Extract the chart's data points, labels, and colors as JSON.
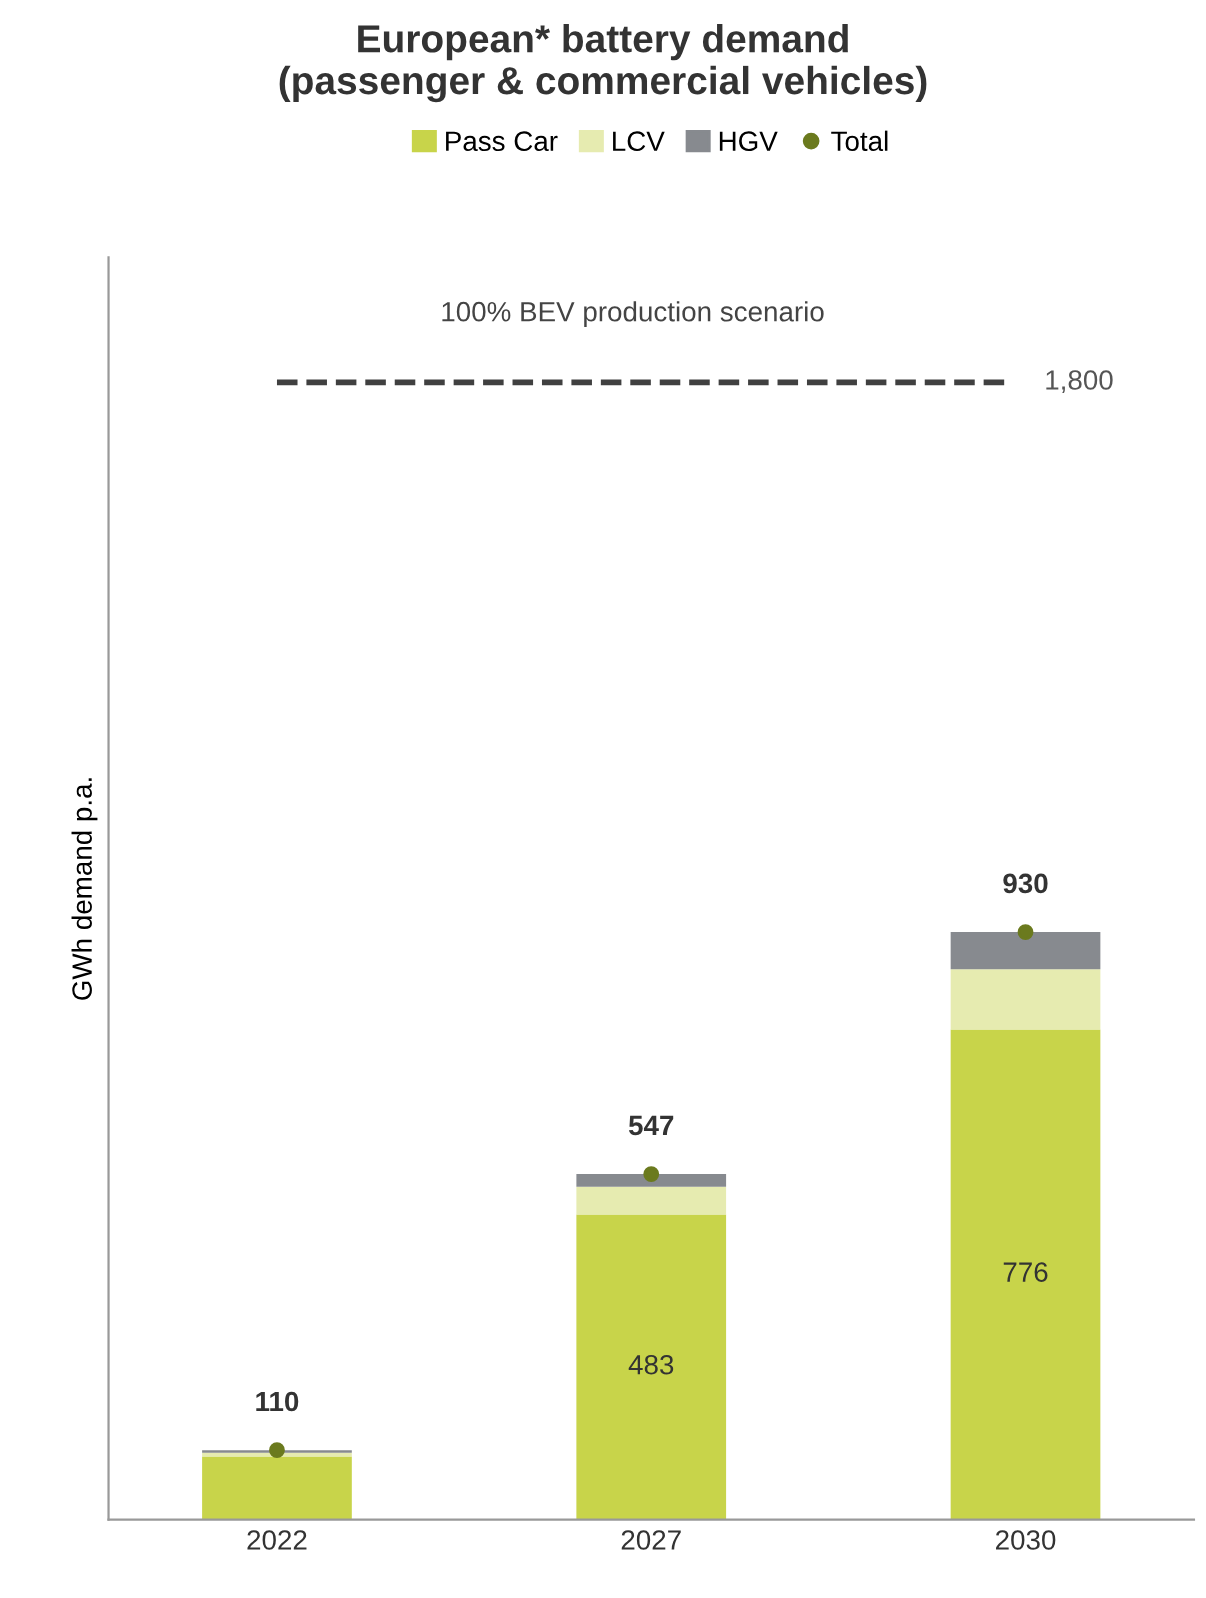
{
  "chart_data": {
    "type": "bar",
    "title": "European* battery demand\n(passenger & commercial vehicles)",
    "ylabel": "GWh demand p.a.",
    "categories": [
      "2022",
      "2027",
      "2030"
    ],
    "stacked": true,
    "tick_labels": "x",
    "legend": "top",
    "grid": false,
    "series": [
      {
        "name": "Pass Car",
        "color": "#c8d44a",
        "values": [
          100,
          483,
          776
        ],
        "value_labels": [
          null,
          "483",
          "776"
        ]
      },
      {
        "name": "LCV",
        "color": "#e6ebb0",
        "values": [
          6,
          44,
          95
        ]
      },
      {
        "name": "HGV",
        "color": "#878a8f",
        "values": [
          4,
          20,
          59
        ]
      },
      {
        "name": "Total",
        "type": "scatter",
        "marker": "circle",
        "color": "#6b7a1e",
        "values": [
          110,
          547,
          930
        ],
        "value_labels": [
          "110",
          "547",
          "930"
        ]
      }
    ],
    "ref_lines": [
      {
        "axis": "y",
        "value": 1800,
        "label": "1,800",
        "color": "#404040",
        "line_style": "dashed"
      }
    ],
    "annotations": [
      "100% BEV production scenario"
    ]
  }
}
